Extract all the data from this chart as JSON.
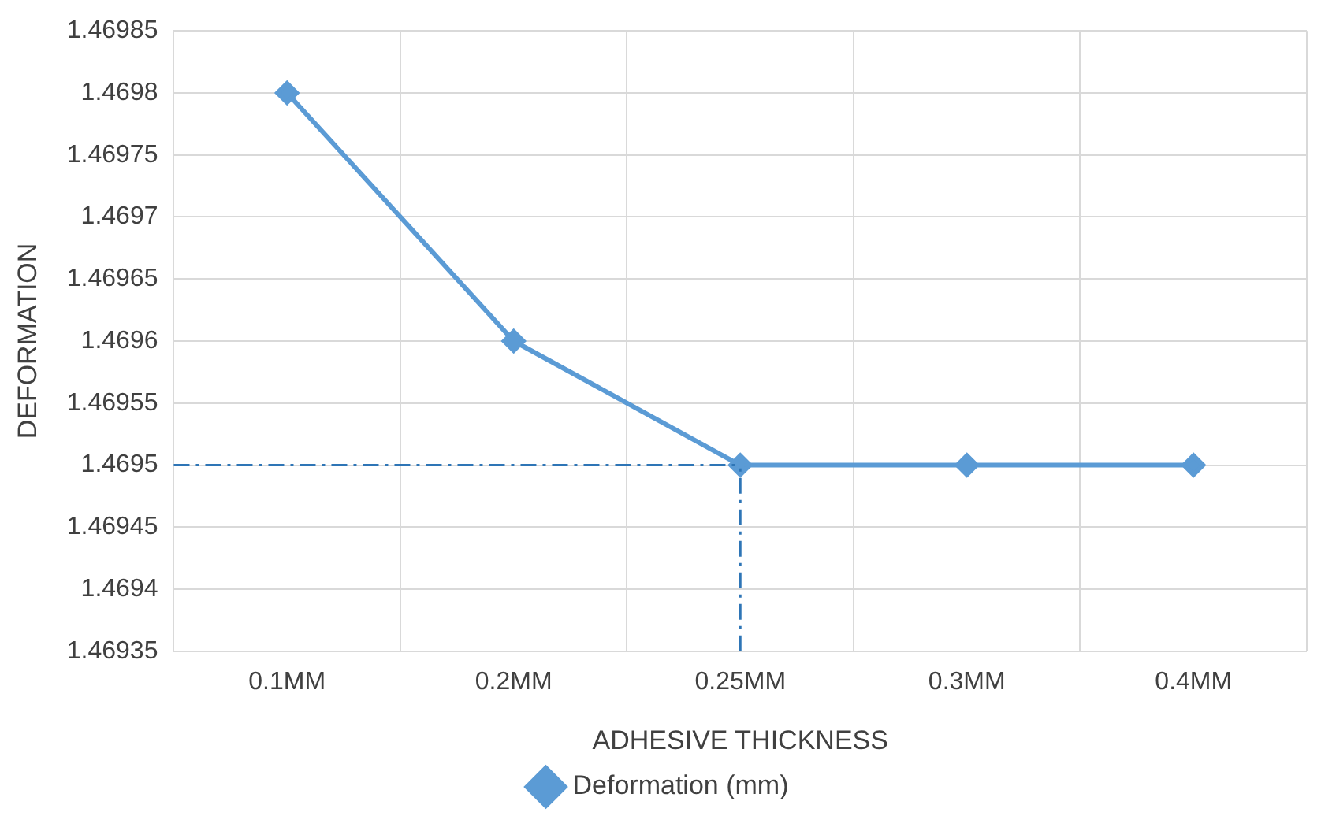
{
  "chart_data": {
    "type": "line",
    "xlabel": "ADHESIVE THICKNESS",
    "ylabel": "DEFORMATION",
    "categories": [
      "0.1MM",
      "0.2MM",
      "0.25MM",
      "0.3MM",
      "0.4MM"
    ],
    "series": [
      {
        "name": "Deformation (mm)",
        "color": "#5b9bd5",
        "values": [
          1.4698,
          1.4696,
          1.4695,
          1.4695,
          1.4695
        ]
      }
    ],
    "ylim": [
      1.46935,
      1.46985
    ],
    "yticks": [
      1.46935,
      1.4694,
      1.46945,
      1.4695,
      1.46955,
      1.4696,
      1.46965,
      1.4697,
      1.46975,
      1.4698,
      1.46985
    ],
    "ref_lines": [
      {
        "axis": "y",
        "value": 1.4695,
        "color": "#2e75b6",
        "line_style": "dashdot"
      },
      {
        "axis": "x",
        "value": "0.25MM",
        "color": "#2e75b6",
        "line_style": "dashdot"
      }
    ],
    "grid": true,
    "legend": "bottom",
    "marker": "diamond",
    "line_style": "solid"
  }
}
